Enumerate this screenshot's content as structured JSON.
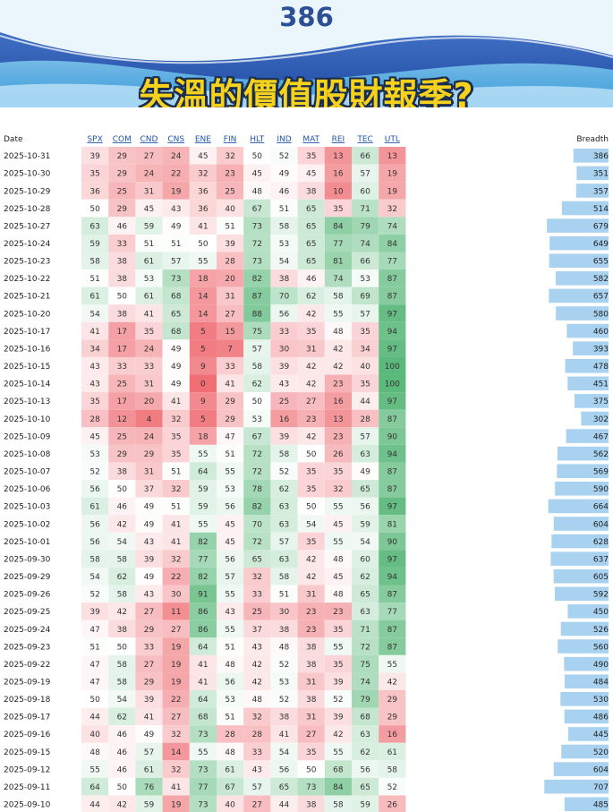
{
  "banner": {
    "number": "386",
    "title": "失溫的價值股財報季?"
  },
  "colors": {
    "red": "#ef6f75",
    "white": "#ffffff",
    "green": "#5bb97b",
    "bar": "#a8d2f0",
    "link": "#2255aa",
    "header_bar": "#2c4f96"
  },
  "chart_data": {
    "type": "heatmap",
    "title": "失溫的價值股財報季?",
    "date_label": "Date",
    "breadth_label": "Breadth",
    "columns": [
      "SPX",
      "COM",
      "CND",
      "CNS",
      "ENE",
      "FIN",
      "HLT",
      "IND",
      "MAT",
      "REI",
      "TEC",
      "UTL"
    ],
    "color_scale": {
      "min": 0,
      "mid": 50,
      "max": 100
    },
    "breadth_range": [
      0,
      710
    ],
    "rows": [
      {
        "date": "2025-10-31",
        "values": [
          39,
          29,
          27,
          24,
          45,
          32,
          50,
          52,
          35,
          13,
          66,
          13
        ],
        "breadth": 386
      },
      {
        "date": "2025-10-30",
        "values": [
          35,
          29,
          24,
          22,
          32,
          23,
          45,
          49,
          45,
          16,
          57,
          19
        ],
        "breadth": 351
      },
      {
        "date": "2025-10-29",
        "values": [
          36,
          25,
          31,
          19,
          36,
          25,
          48,
          46,
          38,
          10,
          60,
          19
        ],
        "breadth": 357
      },
      {
        "date": "2025-10-28",
        "values": [
          50,
          29,
          45,
          43,
          36,
          40,
          67,
          51,
          65,
          35,
          71,
          32
        ],
        "breadth": 514
      },
      {
        "date": "2025-10-27",
        "values": [
          63,
          46,
          59,
          49,
          41,
          51,
          73,
          58,
          65,
          84,
          79,
          74
        ],
        "breadth": 679
      },
      {
        "date": "2025-10-24",
        "values": [
          59,
          33,
          51,
          51,
          50,
          39,
          72,
          53,
          65,
          77,
          74,
          84
        ],
        "breadth": 649
      },
      {
        "date": "2025-10-23",
        "values": [
          58,
          38,
          61,
          57,
          55,
          28,
          73,
          54,
          65,
          81,
          66,
          77
        ],
        "breadth": 655
      },
      {
        "date": "2025-10-22",
        "values": [
          51,
          38,
          53,
          73,
          18,
          20,
          82,
          38,
          46,
          74,
          53,
          87
        ],
        "breadth": 582
      },
      {
        "date": "2025-10-21",
        "values": [
          61,
          50,
          61,
          68,
          14,
          31,
          87,
          70,
          62,
          58,
          69,
          87
        ],
        "breadth": 657
      },
      {
        "date": "2025-10-20",
        "values": [
          54,
          38,
          41,
          65,
          14,
          27,
          88,
          56,
          42,
          55,
          57,
          97
        ],
        "breadth": 580
      },
      {
        "date": "2025-10-17",
        "values": [
          41,
          17,
          35,
          68,
          5,
          15,
          75,
          33,
          35,
          48,
          35,
          94
        ],
        "breadth": 460
      },
      {
        "date": "2025-10-16",
        "values": [
          34,
          17,
          24,
          49,
          5,
          7,
          57,
          30,
          31,
          42,
          34,
          97
        ],
        "breadth": 393
      },
      {
        "date": "2025-10-15",
        "values": [
          43,
          33,
          33,
          49,
          9,
          33,
          58,
          39,
          42,
          42,
          40,
          100
        ],
        "breadth": 478
      },
      {
        "date": "2025-10-14",
        "values": [
          43,
          25,
          31,
          49,
          0,
          41,
          62,
          43,
          42,
          23,
          35,
          100
        ],
        "breadth": 451
      },
      {
        "date": "2025-10-13",
        "values": [
          35,
          17,
          20,
          41,
          9,
          29,
          50,
          25,
          27,
          16,
          44,
          97
        ],
        "breadth": 375
      },
      {
        "date": "2025-10-10",
        "values": [
          28,
          12,
          4,
          32,
          5,
          29,
          53,
          16,
          23,
          13,
          28,
          87
        ],
        "breadth": 302
      },
      {
        "date": "2025-10-09",
        "values": [
          45,
          25,
          24,
          35,
          18,
          47,
          67,
          39,
          42,
          23,
          57,
          90
        ],
        "breadth": 467
      },
      {
        "date": "2025-10-08",
        "values": [
          53,
          29,
          29,
          35,
          55,
          51,
          72,
          58,
          50,
          26,
          63,
          94
        ],
        "breadth": 562
      },
      {
        "date": "2025-10-07",
        "values": [
          52,
          38,
          31,
          51,
          64,
          55,
          72,
          52,
          35,
          35,
          49,
          87
        ],
        "breadth": 569
      },
      {
        "date": "2025-10-06",
        "values": [
          56,
          50,
          37,
          32,
          59,
          53,
          78,
          62,
          35,
          32,
          65,
          87
        ],
        "breadth": 590
      },
      {
        "date": "2025-10-03",
        "values": [
          61,
          46,
          49,
          51,
          59,
          56,
          82,
          63,
          50,
          55,
          56,
          97
        ],
        "breadth": 664
      },
      {
        "date": "2025-10-02",
        "values": [
          56,
          42,
          49,
          41,
          55,
          45,
          70,
          63,
          54,
          45,
          59,
          81
        ],
        "breadth": 604
      },
      {
        "date": "2025-10-01",
        "values": [
          56,
          54,
          43,
          41,
          82,
          45,
          72,
          57,
          35,
          55,
          54,
          90
        ],
        "breadth": 628
      },
      {
        "date": "2025-09-30",
        "values": [
          58,
          58,
          39,
          32,
          77,
          56,
          65,
          63,
          42,
          48,
          60,
          97
        ],
        "breadth": 637
      },
      {
        "date": "2025-09-29",
        "values": [
          54,
          62,
          49,
          22,
          82,
          57,
          32,
          58,
          42,
          45,
          62,
          94
        ],
        "breadth": 605
      },
      {
        "date": "2025-09-26",
        "values": [
          52,
          58,
          43,
          30,
          91,
          55,
          33,
          51,
          31,
          48,
          65,
          87
        ],
        "breadth": 592
      },
      {
        "date": "2025-09-25",
        "values": [
          39,
          42,
          27,
          11,
          86,
          43,
          25,
          30,
          23,
          23,
          63,
          77
        ],
        "breadth": 450
      },
      {
        "date": "2025-09-24",
        "values": [
          47,
          38,
          29,
          27,
          86,
          55,
          37,
          38,
          23,
          35,
          71,
          87
        ],
        "breadth": 526
      },
      {
        "date": "2025-09-23",
        "values": [
          51,
          50,
          33,
          19,
          64,
          51,
          43,
          48,
          38,
          55,
          72,
          87
        ],
        "breadth": 560
      },
      {
        "date": "2025-09-22",
        "values": [
          47,
          58,
          27,
          19,
          41,
          48,
          42,
          52,
          38,
          35,
          75,
          55
        ],
        "breadth": 490
      },
      {
        "date": "2025-09-19",
        "values": [
          47,
          58,
          29,
          19,
          41,
          56,
          42,
          53,
          31,
          39,
          74,
          42
        ],
        "breadth": 484
      },
      {
        "date": "2025-09-18",
        "values": [
          50,
          54,
          39,
          22,
          64,
          53,
          48,
          52,
          38,
          52,
          79,
          29
        ],
        "breadth": 530
      },
      {
        "date": "2025-09-17",
        "values": [
          44,
          62,
          41,
          27,
          68,
          51,
          32,
          38,
          31,
          39,
          68,
          29
        ],
        "breadth": 486
      },
      {
        "date": "2025-09-16",
        "values": [
          40,
          46,
          49,
          32,
          73,
          28,
          28,
          41,
          27,
          42,
          63,
          16
        ],
        "breadth": 445
      },
      {
        "date": "2025-09-15",
        "values": [
          48,
          46,
          57,
          14,
          55,
          48,
          33,
          54,
          35,
          55,
          62,
          61
        ],
        "breadth": 520
      },
      {
        "date": "2025-09-12",
        "values": [
          55,
          46,
          61,
          32,
          73,
          61,
          43,
          56,
          50,
          68,
          56,
          58
        ],
        "breadth": 604
      },
      {
        "date": "2025-09-11",
        "values": [
          64,
          50,
          76,
          41,
          77,
          67,
          57,
          65,
          73,
          84,
          65,
          52
        ],
        "breadth": 707
      },
      {
        "date": "2025-09-10",
        "values": [
          44,
          42,
          59,
          19,
          73,
          40,
          27,
          44,
          38,
          58,
          59,
          26
        ],
        "breadth": 485
      }
    ]
  }
}
